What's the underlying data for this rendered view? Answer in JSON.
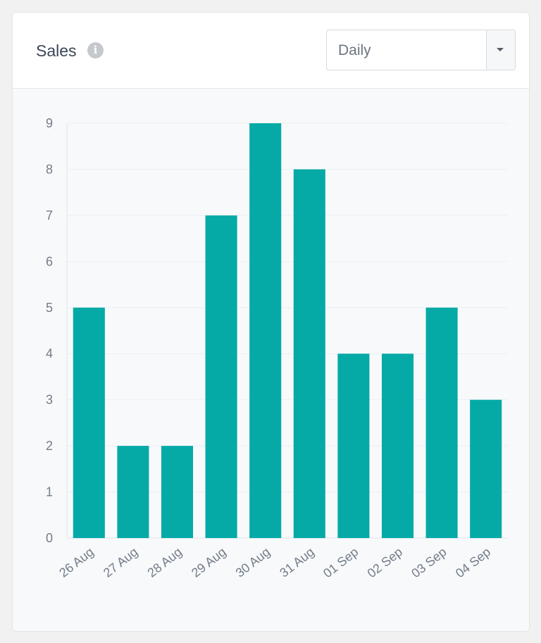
{
  "header": {
    "title": "Sales",
    "info_icon": "info-icon",
    "period_select": {
      "value": "Daily"
    }
  },
  "colors": {
    "bar": "#05aaa7",
    "grid": "#eceef2",
    "axis": "#dfe3e8"
  },
  "chart_data": {
    "type": "bar",
    "categories": [
      "26 Aug",
      "27 Aug",
      "28 Aug",
      "29 Aug",
      "30 Aug",
      "31 Aug",
      "01 Sep",
      "02 Sep",
      "03 Sep",
      "04 Sep"
    ],
    "values": [
      5,
      2,
      2,
      7,
      9,
      8,
      4,
      4,
      5,
      3
    ],
    "yticks": [
      "0",
      "1",
      "2",
      "3",
      "4",
      "5",
      "6",
      "7",
      "8",
      "9"
    ],
    "ylim": [
      0,
      9
    ],
    "title": "",
    "xlabel": "",
    "ylabel": "",
    "grid": true,
    "legend": "none"
  }
}
